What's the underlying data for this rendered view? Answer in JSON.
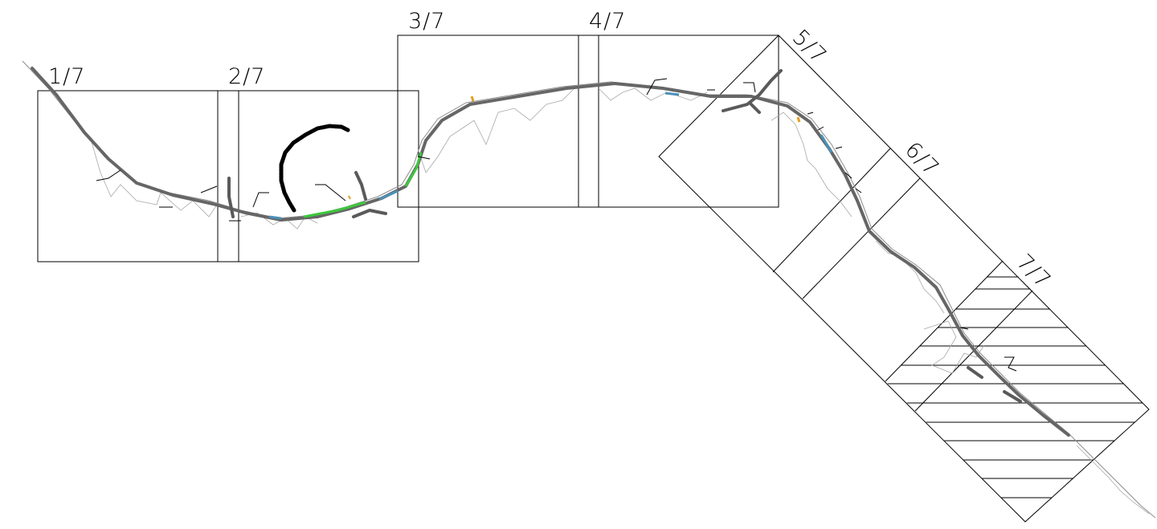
{
  "sheets": [
    {
      "id": "sheet-1",
      "label": "1/7"
    },
    {
      "id": "sheet-2",
      "label": "2/7"
    },
    {
      "id": "sheet-3",
      "label": "3/7"
    },
    {
      "id": "sheet-4",
      "label": "4/7"
    },
    {
      "id": "sheet-5",
      "label": "5/7"
    },
    {
      "id": "sheet-6",
      "label": "6/7"
    },
    {
      "id": "sheet-7",
      "label": "7/7"
    }
  ],
  "colors": {
    "frame": "#000000",
    "route": "#666666",
    "terrain": "#a8a8a8",
    "green_segment": "#3cc83c",
    "blue_segment": "#4a90b8",
    "orange_marker": "#e0a020",
    "black_loop": "#000000"
  },
  "hatched_sheet": "7/7"
}
